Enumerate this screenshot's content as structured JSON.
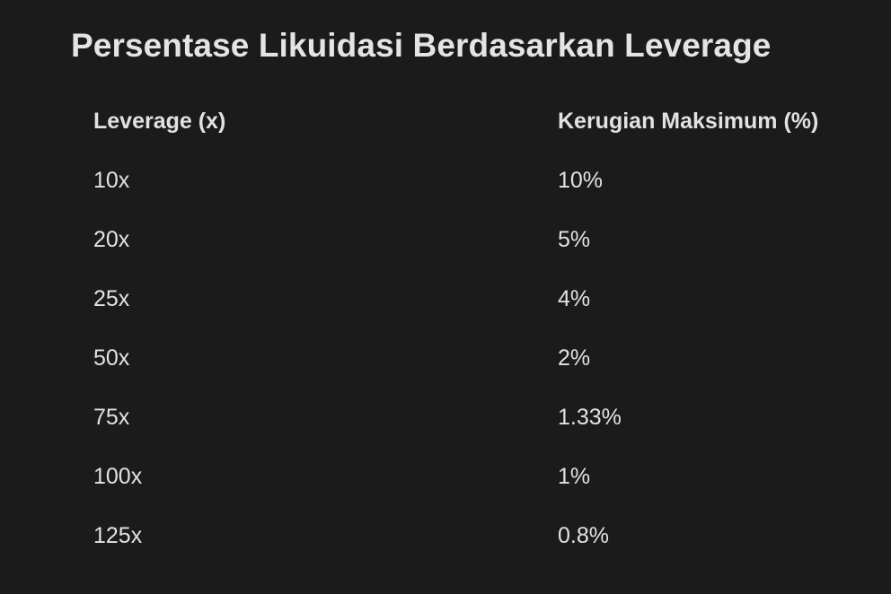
{
  "title": "Persentase Likuidasi Berdasarkan Leverage",
  "table": {
    "headers": [
      "Leverage (x)",
      "Kerugian Maksimum (%)"
    ],
    "rows": [
      [
        "10x",
        "10%"
      ],
      [
        "20x",
        "5%"
      ],
      [
        "25x",
        "4%"
      ],
      [
        "50x",
        "2%"
      ],
      [
        "75x",
        "1.33%"
      ],
      [
        "100x",
        "1%"
      ],
      [
        "125x",
        "0.8%"
      ]
    ]
  }
}
